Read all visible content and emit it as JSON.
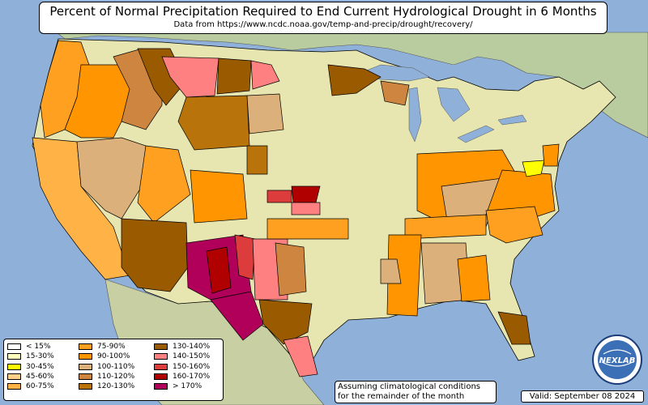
{
  "title": "Percent of Normal Precipitation Required to End Current Hydrological Drought in 6 Months",
  "subtitle": "Data from https://www.ncdc.noaa.gov/temp-and-precip/drought/recovery/",
  "note_line1": "Assuming climatological conditions",
  "note_line2": "for the remainder of the month",
  "valid": "Valid: September 08 2024",
  "logo_text": "NEXLAB",
  "colors": {
    "ocean": "#8fb0d8",
    "land": "#c9d9a8",
    "border": "#000000"
  },
  "legend": [
    {
      "label": "< 15%",
      "color": "#ffffff"
    },
    {
      "label": "15-30%",
      "color": "#ffffc0"
    },
    {
      "label": "30-45%",
      "color": "#ffff00"
    },
    {
      "label": "45-60%",
      "color": "#ffd08a"
    },
    {
      "label": "60-75%",
      "color": "#ffb347"
    },
    {
      "label": "75-90%",
      "color": "#ffa020"
    },
    {
      "label": "90-100%",
      "color": "#ff9500"
    },
    {
      "label": "100-110%",
      "color": "#dcb07a"
    },
    {
      "label": "110-120%",
      "color": "#cd853f"
    },
    {
      "label": "120-130%",
      "color": "#b8730a"
    },
    {
      "label": "130-140%",
      "color": "#9a5a00"
    },
    {
      "label": "140-150%",
      "color": "#ff8080"
    },
    {
      "label": "150-160%",
      "color": "#dd3c3c"
    },
    {
      "label": "160-170%",
      "color": "#b00000"
    },
    {
      "label": "> 170%",
      "color": "#b0005a"
    }
  ]
}
